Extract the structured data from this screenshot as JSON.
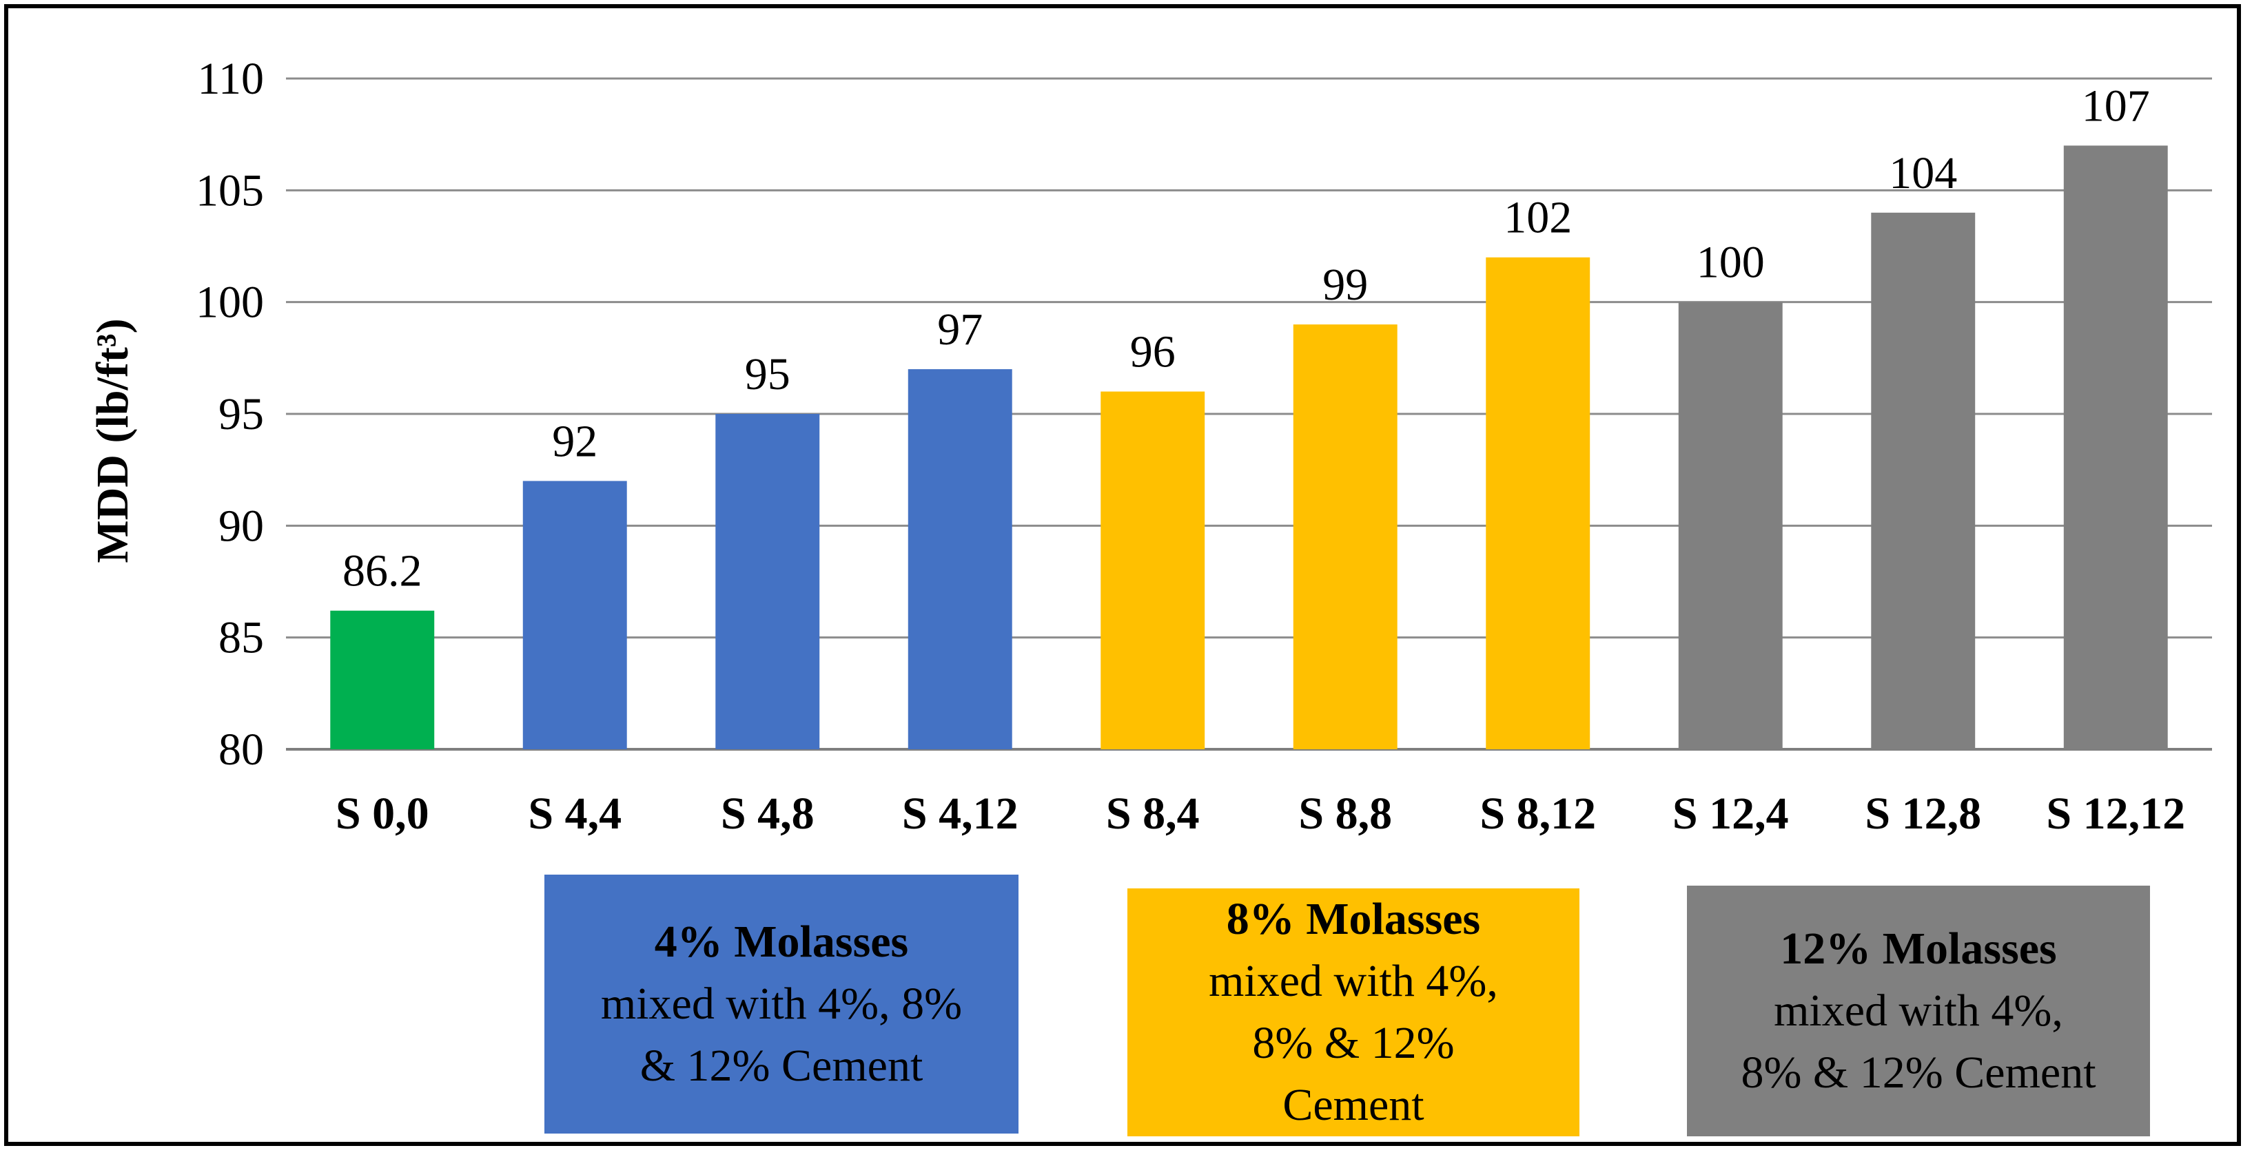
{
  "chart_data": {
    "type": "bar",
    "title": "",
    "xlabel": "",
    "ylabel": "MDD (lb/ft³)",
    "ylim": [
      80,
      110
    ],
    "yticks": [
      80,
      85,
      90,
      95,
      100,
      105,
      110
    ],
    "grid": true,
    "categories": [
      "S 0,0",
      "S 4,4",
      "S 4,8",
      "S 4,12",
      "S 8,4",
      "S 8,8",
      "S 8,12",
      "S 12,4",
      "S 12,8",
      "S 12,12"
    ],
    "values": [
      86.2,
      92,
      95,
      97,
      96,
      99,
      102,
      100,
      104,
      107
    ],
    "data_labels": [
      "86.2",
      "92",
      "95",
      "97",
      "96",
      "99",
      "102",
      "100",
      "104",
      "107"
    ],
    "bar_colors": [
      "#00b050",
      "#4472c4",
      "#4472c4",
      "#4472c4",
      "#ffc000",
      "#ffc000",
      "#ffc000",
      "#808080",
      "#808080",
      "#808080"
    ],
    "legend": [
      {
        "title": "4% Molasses",
        "desc": "mixed with 4%, 8%\n& 12% Cement",
        "color": "#4472c4"
      },
      {
        "title": "8% Molasses",
        "desc": "mixed with 4%,\n8% & 12%\nCement",
        "color": "#ffc000"
      },
      {
        "title": "12% Molasses",
        "desc": "mixed with 4%,\n8% & 12% Cement",
        "color": "#808080"
      }
    ]
  }
}
